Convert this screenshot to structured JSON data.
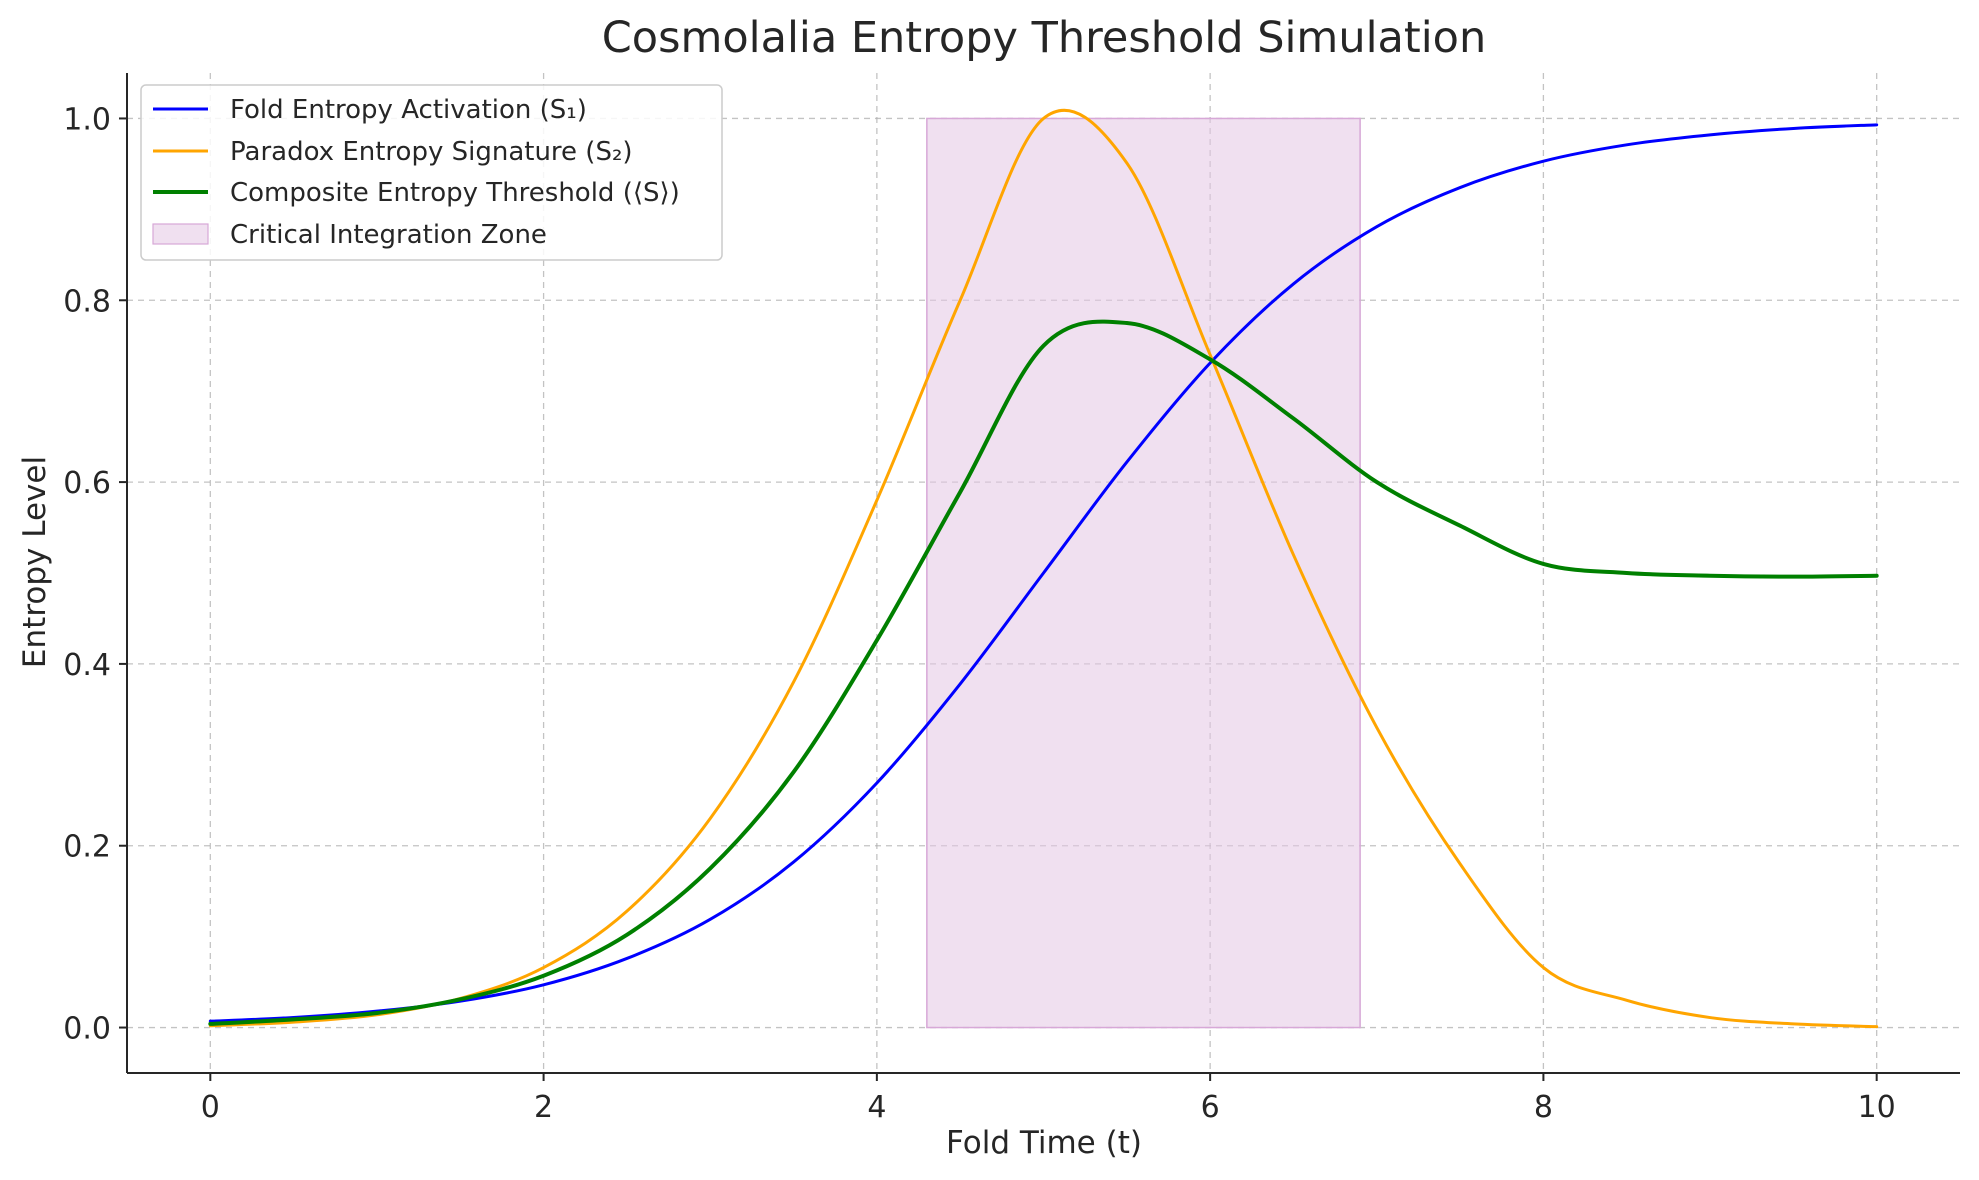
{
  "chart_data": {
    "type": "line",
    "title": "Cosmolalia Entropy Threshold Simulation",
    "xlabel": "Fold Time (t)",
    "ylabel": "Entropy Level",
    "xlim": [
      -0.5,
      10.5
    ],
    "ylim": [
      -0.05,
      1.05
    ],
    "xticks": [
      0,
      2,
      4,
      6,
      8,
      10
    ],
    "xtick_labels": [
      "0",
      "2",
      "4",
      "6",
      "8",
      "10"
    ],
    "yticks": [
      0.0,
      0.2,
      0.4,
      0.6,
      0.8,
      1.0
    ],
    "ytick_labels": [
      "0.0",
      "0.2",
      "0.4",
      "0.6",
      "0.8",
      "1.0"
    ],
    "grid": true,
    "legend_position": "top-left",
    "x": [
      0,
      0.5,
      1,
      1.5,
      2,
      2.5,
      3,
      3.5,
      4,
      4.5,
      5,
      5.5,
      6,
      6.5,
      7,
      7.5,
      8,
      8.5,
      9,
      9.5,
      10
    ],
    "series": [
      {
        "name": "Fold Entropy Activation (S₁)",
        "color": "#0000ff",
        "line_width": 3,
        "values": [
          0.007,
          0.011,
          0.018,
          0.029,
          0.047,
          0.076,
          0.119,
          0.182,
          0.269,
          0.378,
          0.5,
          0.622,
          0.731,
          0.818,
          0.881,
          0.924,
          0.953,
          0.971,
          0.982,
          0.989,
          0.993
        ]
      },
      {
        "name": "Paradox Entropy Signature (S₂)",
        "color": "#ffa500",
        "line_width": 3,
        "values": [
          0.002,
          0.006,
          0.014,
          0.032,
          0.066,
          0.128,
          0.23,
          0.38,
          0.58,
          0.8,
          1.0,
          0.951,
          0.74,
          0.52,
          0.33,
          0.18,
          0.066,
          0.03,
          0.011,
          0.004,
          0.001
        ]
      },
      {
        "name": "Composite Entropy Threshold (⟨S⟩)",
        "color": "#008000",
        "line_width": 4,
        "values": [
          0.004,
          0.009,
          0.016,
          0.031,
          0.057,
          0.102,
          0.175,
          0.281,
          0.426,
          0.589,
          0.75,
          0.775,
          0.735,
          0.67,
          0.6,
          0.552,
          0.51,
          0.5,
          0.497,
          0.496,
          0.497
        ]
      }
    ],
    "shaded_region": {
      "name": "Critical Integration Zone",
      "x_range": [
        4.3,
        6.9
      ],
      "y_range": [
        0.0,
        1.0
      ],
      "color": "#e3c6e3"
    }
  }
}
